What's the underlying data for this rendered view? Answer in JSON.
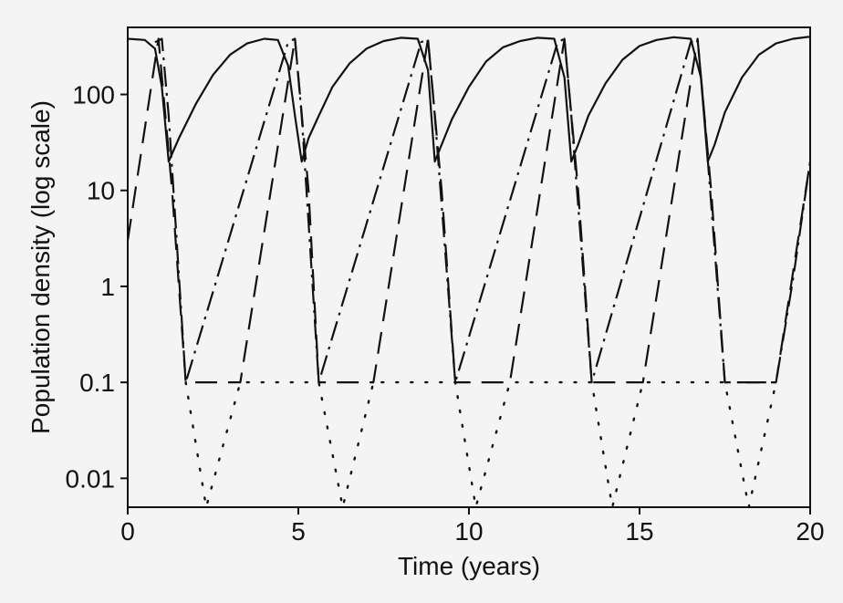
{
  "chart_data": {
    "type": "line",
    "title": "",
    "xlabel": "Time (years)",
    "ylabel": "Population density (log scale)",
    "xlim": [
      0,
      20
    ],
    "ylim": [
      0.005,
      500
    ],
    "yscale": "log",
    "x_ticks": [
      0,
      5,
      10,
      15,
      20
    ],
    "x_tick_labels": [
      "0",
      "5",
      "10",
      "15",
      "20"
    ],
    "y_ticks": [
      0.01,
      0.1,
      1,
      10,
      100
    ],
    "y_tick_labels": [
      "0.01",
      "0.1",
      "1",
      "10",
      "100"
    ],
    "grid": false,
    "legend": "none",
    "series": [
      {
        "style": "solid",
        "color": "#111111",
        "x": [
          0,
          0.5,
          0.8,
          1.0,
          1.2,
          1.5,
          2.0,
          2.5,
          3.0,
          3.5,
          4.0,
          4.4,
          4.7,
          4.9,
          5.1,
          5.3,
          5.6,
          6.0,
          6.5,
          7.0,
          7.5,
          8.0,
          8.5,
          8.8,
          9.0,
          9.2,
          9.5,
          10.0,
          10.5,
          11.0,
          11.5,
          12.0,
          12.5,
          12.8,
          13.0,
          13.2,
          13.5,
          14.0,
          14.5,
          15.0,
          15.5,
          16.0,
          16.5,
          16.8,
          17.0,
          17.2,
          17.5,
          18.0,
          18.5,
          19.0,
          19.5,
          20.0
        ],
        "y": [
          380,
          370,
          300,
          120,
          20,
          35,
          80,
          160,
          260,
          340,
          380,
          370,
          200,
          60,
          20,
          35,
          60,
          120,
          210,
          300,
          360,
          390,
          380,
          180,
          20,
          30,
          55,
          120,
          220,
          310,
          360,
          390,
          380,
          150,
          20,
          30,
          60,
          130,
          230,
          320,
          370,
          395,
          380,
          150,
          20,
          30,
          65,
          150,
          260,
          340,
          380,
          400
        ]
      },
      {
        "style": "dashed",
        "color": "#111111",
        "x": [
          0,
          0.9,
          1.3,
          1.7,
          3.3,
          4.9,
          5.3,
          5.6,
          7.2,
          8.8,
          9.2,
          9.6,
          11.2,
          12.8,
          13.2,
          13.6,
          15.1,
          16.7,
          17.1,
          17.5,
          19.0,
          20.0
        ],
        "y": [
          3,
          380,
          10,
          0.1,
          0.1,
          380,
          10,
          0.1,
          0.1,
          380,
          10,
          0.1,
          0.1,
          380,
          10,
          0.1,
          0.1,
          380,
          10,
          0.1,
          0.1,
          20
        ]
      },
      {
        "style": "dashdot",
        "color": "#111111",
        "x": [
          0.8,
          1.0,
          1.2,
          1.7,
          4.7,
          4.9,
          5.1,
          5.6,
          8.6,
          8.8,
          9.0,
          9.6,
          12.6,
          12.8,
          13.0,
          13.6,
          16.5,
          16.7,
          16.9,
          17.5,
          19.0,
          19.5,
          20.0
        ],
        "y": [
          350,
          380,
          60,
          0.1,
          350,
          380,
          60,
          0.1,
          350,
          380,
          60,
          0.1,
          350,
          380,
          60,
          0.1,
          350,
          380,
          60,
          0.1,
          0.1,
          1.2,
          20
        ]
      },
      {
        "style": "dotted",
        "color": "#111111",
        "x": [
          1.7,
          2.3,
          3.3,
          5.6,
          6.3,
          7.2,
          9.6,
          10.2,
          11.2,
          13.6,
          14.2,
          15.1,
          17.5,
          18.2,
          19.0
        ],
        "y": [
          0.1,
          0.005,
          0.1,
          0.1,
          0.005,
          0.1,
          0.1,
          0.005,
          0.1,
          0.1,
          0.005,
          0.1,
          0.1,
          0.005,
          0.1
        ]
      }
    ]
  }
}
